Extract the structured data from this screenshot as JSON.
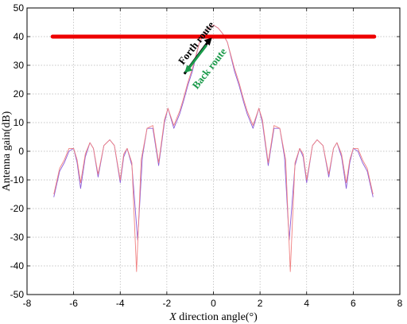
{
  "chart_data": {
    "type": "line",
    "title": "",
    "xlabel_italic": "X",
    "xlabel_rest": " direction angle(°)",
    "ylabel": "Antenna gain(dB)",
    "xlim": [
      -8,
      8
    ],
    "ylim": [
      -50,
      50
    ],
    "xticks": [
      -8,
      -6,
      -4,
      -2,
      0,
      2,
      4,
      6,
      8
    ],
    "yticks": [
      -50,
      -40,
      -30,
      -20,
      -10,
      0,
      10,
      20,
      30,
      40,
      50
    ],
    "grid": true,
    "series": [
      {
        "color": "#8a5bd8",
        "x": [
          -6.85,
          -6.6,
          -6.4,
          -6.2,
          -6.0,
          -5.85,
          -5.7,
          -5.5,
          -5.3,
          -5.15,
          -4.95,
          -4.7,
          -4.45,
          -4.25,
          -4.0,
          -3.85,
          -3.7,
          -3.5,
          -3.25,
          -3.05,
          -2.85,
          -2.6,
          -2.35,
          -2.1,
          -1.95,
          -1.7,
          -1.45,
          -1.3,
          -1.1,
          -0.9,
          -0.6,
          -0.4,
          -0.2,
          0.0,
          0.2,
          0.4,
          0.6,
          0.9,
          1.1,
          1.3,
          1.45,
          1.7,
          1.95,
          2.1,
          2.35,
          2.6,
          2.85,
          3.05,
          3.25,
          3.5,
          3.7,
          3.85,
          4.0,
          4.25,
          4.45,
          4.7,
          4.95,
          5.15,
          5.3,
          5.5,
          5.7,
          5.85,
          6.0,
          6.2,
          6.4,
          6.6,
          6.85
        ],
        "y": [
          -16,
          -7,
          -4,
          0,
          1,
          -4,
          -13,
          -2,
          3,
          1,
          -9,
          2,
          4,
          2,
          -11,
          -2,
          1,
          -5,
          -31,
          -2,
          8,
          8,
          -5,
          10,
          15,
          8,
          13,
          17,
          23,
          28,
          38,
          41,
          43,
          44,
          43,
          41,
          38,
          28,
          23,
          17,
          13,
          8,
          15,
          10,
          -5,
          8,
          8,
          -2,
          -31,
          -5,
          1,
          -2,
          -11,
          2,
          4,
          2,
          -9,
          1,
          3,
          -2,
          -13,
          -4,
          1,
          0,
          -4,
          -7,
          -16
        ]
      },
      {
        "color": "#f08080",
        "x": [
          -6.85,
          -6.6,
          -6.4,
          -6.2,
          -6.0,
          -5.85,
          -5.7,
          -5.5,
          -5.3,
          -5.15,
          -4.95,
          -4.7,
          -4.45,
          -4.25,
          -4.0,
          -3.85,
          -3.7,
          -3.5,
          -3.3,
          -3.1,
          -2.85,
          -2.6,
          -2.35,
          -2.1,
          -1.95,
          -1.7,
          -1.45,
          -1.3,
          -1.1,
          -0.9,
          -0.6,
          -0.4,
          -0.2,
          0.0,
          0.2,
          0.4,
          0.6,
          0.9,
          1.1,
          1.3,
          1.45,
          1.7,
          1.95,
          2.1,
          2.35,
          2.6,
          2.85,
          3.1,
          3.3,
          3.5,
          3.7,
          3.85,
          4.0,
          4.25,
          4.45,
          4.7,
          4.95,
          5.15,
          5.3,
          5.5,
          5.7,
          5.85,
          6.0,
          6.2,
          6.4,
          6.6,
          6.85
        ],
        "y": [
          -15,
          -6,
          -3,
          1,
          1,
          -3,
          -11,
          -1,
          3,
          1,
          -8,
          2,
          4,
          2,
          -10,
          -1,
          1,
          -4,
          -42,
          -3,
          8,
          9,
          -4,
          11,
          15,
          9,
          14,
          18,
          24,
          29,
          38,
          41,
          43,
          44,
          43,
          41,
          38,
          29,
          24,
          18,
          14,
          9,
          15,
          11,
          -4,
          9,
          8,
          -3,
          -42,
          -4,
          1,
          -1,
          -10,
          2,
          4,
          2,
          -8,
          1,
          3,
          -1,
          -11,
          -3,
          1,
          1,
          -3,
          -6,
          -15
        ]
      },
      {
        "color": "#ee0000",
        "style": "threshold",
        "x": [
          -6.9,
          6.9
        ],
        "y": [
          40,
          40
        ]
      }
    ],
    "annotations": {
      "forth_route": "Forth route",
      "back_route": "Back route"
    }
  }
}
